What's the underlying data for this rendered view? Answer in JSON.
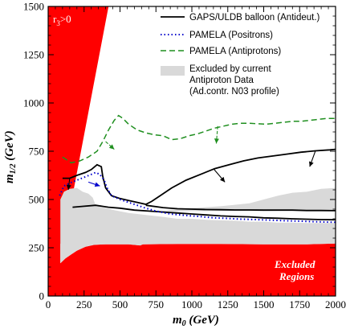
{
  "chart_data": {
    "type": "line",
    "title": "",
    "xlabel": "m_0 (GeV)",
    "ylabel": "m_1/2 (GeV)",
    "xlim": [
      0,
      2000
    ],
    "ylim": [
      0,
      1500
    ],
    "xticks": [
      0,
      250,
      500,
      750,
      1000,
      1250,
      1500,
      1750,
      2000
    ],
    "yticks": [
      0,
      250,
      500,
      750,
      1000,
      1250,
      1500
    ],
    "grid": false,
    "legend_position": "top-right",
    "colors": {
      "red_region": "#ff0000",
      "grey_region": "#d9d9d9",
      "gaps": "#000000",
      "pamela_pos": "#0000cc",
      "pamela_anti": "#1f8f1f"
    },
    "legend": [
      {
        "key": "gaps",
        "label": "GAPS/ULDB balloon (Antideut.)",
        "style": "solid"
      },
      {
        "key": "pamela_pos",
        "label": "PAMELA (Positrons)",
        "style": "dotted"
      },
      {
        "key": "pamela_anti",
        "label": "PAMELA (Antiprotons)",
        "style": "dashed"
      },
      {
        "key": "grey",
        "label_lines": [
          "Excluded by current",
          "Antiproton Data",
          "(Ad.contr. N03 profile)"
        ],
        "style": "fill"
      }
    ],
    "annotations": {
      "r3": "r",
      "r3_sub": "3",
      "r3_rest": ">0",
      "excluded_line1": "Excluded",
      "excluded_line2": "Regions"
    },
    "regions": {
      "red_bottom": [
        [
          0,
          0
        ],
        [
          0,
          1500
        ],
        [
          115,
          1500
        ],
        [
          420,
          1500
        ],
        [
          180,
          560
        ],
        [
          140,
          420
        ],
        [
          100,
          290
        ],
        [
          85,
          270
        ],
        [
          85,
          170
        ],
        [
          120,
          195
        ],
        [
          160,
          215
        ],
        [
          200,
          235
        ],
        [
          260,
          255
        ],
        [
          320,
          265
        ],
        [
          400,
          268
        ],
        [
          560,
          268
        ],
        [
          640,
          262
        ],
        [
          660,
          268
        ],
        [
          900,
          270
        ],
        [
          1200,
          270
        ],
        [
          1500,
          268
        ],
        [
          1800,
          268
        ],
        [
          2000,
          272
        ],
        [
          2000,
          0
        ]
      ],
      "red_wedge": [
        [
          115,
          1500
        ],
        [
          420,
          1500
        ],
        [
          180,
          560
        ],
        [
          140,
          420
        ],
        [
          85,
          270
        ]
      ],
      "grey_main": [
        [
          85,
          170
        ],
        [
          85,
          500
        ],
        [
          110,
          540
        ],
        [
          150,
          555
        ],
        [
          200,
          560
        ],
        [
          240,
          540
        ],
        [
          280,
          530
        ],
        [
          310,
          510
        ],
        [
          330,
          470
        ],
        [
          380,
          460
        ],
        [
          460,
          445
        ],
        [
          560,
          430
        ],
        [
          680,
          420
        ],
        [
          800,
          410
        ],
        [
          900,
          400
        ],
        [
          1000,
          400
        ],
        [
          1100,
          395
        ],
        [
          1200,
          392
        ],
        [
          1300,
          390
        ],
        [
          1400,
          385
        ],
        [
          1500,
          385
        ],
        [
          1600,
          380
        ],
        [
          1700,
          380
        ],
        [
          1800,
          378
        ],
        [
          1900,
          378
        ],
        [
          2000,
          378
        ],
        [
          2000,
          272
        ],
        [
          1800,
          268
        ],
        [
          1500,
          268
        ],
        [
          1200,
          270
        ],
        [
          900,
          270
        ],
        [
          660,
          268
        ],
        [
          640,
          262
        ],
        [
          560,
          268
        ],
        [
          400,
          268
        ],
        [
          320,
          265
        ],
        [
          260,
          255
        ],
        [
          200,
          235
        ],
        [
          160,
          215
        ],
        [
          120,
          195
        ]
      ],
      "grey_upper": [
        [
          780,
          440
        ],
        [
          900,
          450
        ],
        [
          1000,
          455
        ],
        [
          1200,
          465
        ],
        [
          1400,
          480
        ],
        [
          1500,
          500
        ],
        [
          1600,
          520
        ],
        [
          1700,
          535
        ],
        [
          1800,
          540
        ],
        [
          1900,
          555
        ],
        [
          2000,
          560
        ],
        [
          2000,
          445
        ],
        [
          1800,
          445
        ],
        [
          1500,
          440
        ],
        [
          1200,
          440
        ],
        [
          1000,
          440
        ],
        [
          900,
          438
        ]
      ]
    },
    "series": [
      {
        "key": "gaps_lower",
        "values": [
          [
            170,
            460
          ],
          [
            250,
            465
          ],
          [
            330,
            470
          ],
          [
            420,
            460
          ],
          [
            500,
            455
          ],
          [
            600,
            445
          ],
          [
            700,
            440
          ],
          [
            800,
            435
          ],
          [
            900,
            430
          ],
          [
            1000,
            425
          ],
          [
            1100,
            420
          ],
          [
            1200,
            415
          ],
          [
            1300,
            412
          ],
          [
            1400,
            410
          ],
          [
            1500,
            405
          ],
          [
            1600,
            403
          ],
          [
            1700,
            400
          ],
          [
            1800,
            398
          ],
          [
            1900,
            396
          ],
          [
            2000,
            395
          ]
        ]
      },
      {
        "key": "gaps_mid",
        "values": [
          [
            680,
            470
          ],
          [
            800,
            458
          ],
          [
            900,
            452
          ],
          [
            1000,
            450
          ],
          [
            1100,
            448
          ],
          [
            1200,
            447
          ],
          [
            1300,
            446
          ],
          [
            1400,
            446
          ],
          [
            1500,
            445
          ],
          [
            1600,
            445
          ],
          [
            1700,
            445
          ],
          [
            1800,
            443
          ],
          [
            1900,
            443
          ],
          [
            2000,
            442
          ]
        ]
      },
      {
        "key": "gaps_upper",
        "values": [
          [
            100,
            610
          ],
          [
            150,
            610
          ],
          [
            200,
            625
          ],
          [
            260,
            640
          ],
          [
            300,
            655
          ],
          [
            340,
            680
          ],
          [
            370,
            670
          ],
          [
            380,
            620
          ],
          [
            400,
            560
          ],
          [
            440,
            520
          ],
          [
            500,
            505
          ],
          [
            560,
            495
          ],
          [
            620,
            485
          ],
          [
            680,
            475
          ],
          [
            720,
            490
          ],
          [
            780,
            520
          ],
          [
            860,
            560
          ],
          [
            960,
            600
          ],
          [
            1060,
            630
          ],
          [
            1160,
            660
          ],
          [
            1260,
            680
          ],
          [
            1360,
            700
          ],
          [
            1460,
            715
          ],
          [
            1560,
            725
          ],
          [
            1660,
            735
          ],
          [
            1760,
            745
          ],
          [
            1860,
            752
          ],
          [
            1960,
            757
          ],
          [
            2000,
            760
          ]
        ]
      },
      {
        "key": "pamela_pos",
        "values": [
          [
            80,
            520
          ],
          [
            110,
            570
          ],
          [
            150,
            585
          ],
          [
            200,
            600
          ],
          [
            250,
            615
          ],
          [
            300,
            630
          ],
          [
            330,
            640
          ],
          [
            360,
            630
          ],
          [
            390,
            600
          ],
          [
            410,
            560
          ],
          [
            440,
            520
          ],
          [
            500,
            500
          ],
          [
            560,
            485
          ],
          [
            620,
            470
          ],
          [
            680,
            455
          ],
          [
            750,
            440
          ],
          [
            850,
            425
          ],
          [
            950,
            418
          ],
          [
            1050,
            412
          ],
          [
            1150,
            405
          ],
          [
            1250,
            402
          ],
          [
            1350,
            398
          ],
          [
            1450,
            396
          ],
          [
            1550,
            393
          ],
          [
            1650,
            390
          ],
          [
            1750,
            388
          ],
          [
            1850,
            385
          ],
          [
            1950,
            383
          ],
          [
            2000,
            382
          ]
        ]
      },
      {
        "key": "pamela_anti",
        "values": [
          [
            100,
            720
          ],
          [
            160,
            690
          ],
          [
            220,
            700
          ],
          [
            280,
            720
          ],
          [
            340,
            750
          ],
          [
            380,
            800
          ],
          [
            420,
            860
          ],
          [
            460,
            910
          ],
          [
            490,
            935
          ],
          [
            520,
            920
          ],
          [
            560,
            890
          ],
          [
            620,
            860
          ],
          [
            680,
            845
          ],
          [
            740,
            835
          ],
          [
            800,
            830
          ],
          [
            860,
            810
          ],
          [
            920,
            815
          ],
          [
            980,
            830
          ],
          [
            1040,
            840
          ],
          [
            1100,
            855
          ],
          [
            1160,
            870
          ],
          [
            1220,
            880
          ],
          [
            1280,
            890
          ],
          [
            1340,
            895
          ],
          [
            1400,
            895
          ],
          [
            1460,
            892
          ],
          [
            1520,
            890
          ],
          [
            1580,
            895
          ],
          [
            1640,
            900
          ],
          [
            1700,
            905
          ],
          [
            1760,
            905
          ],
          [
            1820,
            910
          ],
          [
            1880,
            915
          ],
          [
            1940,
            920
          ],
          [
            2000,
            920
          ]
        ]
      }
    ],
    "arrows": [
      {
        "color": "pamela_anti",
        "from": [
          400,
          800
        ],
        "to": [
          460,
          760
        ]
      },
      {
        "color": "pamela_anti",
        "from": [
          1180,
          880
        ],
        "to": [
          1170,
          790
        ]
      },
      {
        "color": "gaps",
        "from": [
          1150,
          660
        ],
        "to": [
          1230,
          590
        ]
      },
      {
        "color": "gaps",
        "from": [
          1860,
          752
        ],
        "to": [
          1820,
          670
        ]
      },
      {
        "color": "gaps",
        "from": [
          150,
          610
        ],
        "to": [
          140,
          550
        ]
      },
      {
        "color": "pamela_pos",
        "from": [
          280,
          590
        ],
        "to": [
          360,
          570
        ]
      }
    ]
  }
}
